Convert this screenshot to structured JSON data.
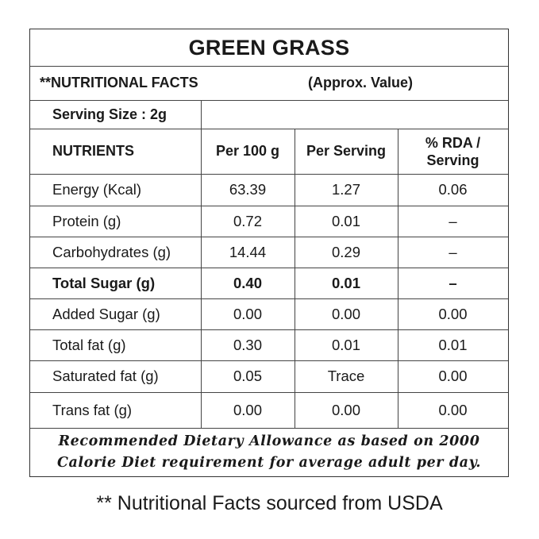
{
  "title": "GREEN GRASS",
  "facts_header": "**NUTRITIONAL FACTS",
  "approx_label": "(Approx. Value)",
  "serving_size": "Serving Size : 2g",
  "columns": [
    "NUTRIENTS",
    "Per 100 g",
    "Per Serving",
    "% RDA / Serving"
  ],
  "rows": [
    {
      "name": "Energy (Kcal)",
      "per100": "63.39",
      "serving": "1.27",
      "rda": "0.06",
      "bold": false
    },
    {
      "name": "Protein (g)",
      "per100": "0.72",
      "serving": "0.01",
      "rda": "–",
      "bold": false
    },
    {
      "name": "Carbohydrates (g)",
      "per100": "14.44",
      "serving": "0.29",
      "rda": "–",
      "bold": false
    },
    {
      "name": "Total Sugar (g)",
      "per100": "0.40",
      "serving": "0.01",
      "rda": "–",
      "bold": true
    },
    {
      "name": "Added Sugar (g)",
      "per100": "0.00",
      "serving": "0.00",
      "rda": "0.00",
      "bold": false
    },
    {
      "name": "Total fat (g)",
      "per100": "0.30",
      "serving": "0.01",
      "rda": "0.01",
      "bold": false
    },
    {
      "name": "Saturated fat (g)",
      "per100": "0.05",
      "serving": "Trace",
      "rda": "0.00",
      "bold": false
    },
    {
      "name": "Trans fat (g)",
      "per100": "0.00",
      "serving": "0.00",
      "rda": "0.00",
      "bold": false
    }
  ],
  "footnote": "Recommended Dietary Allowance as based on 2000 Calorie Diet requirement for average adult per day.",
  "source_note": "** Nutritional Facts sourced from USDA"
}
